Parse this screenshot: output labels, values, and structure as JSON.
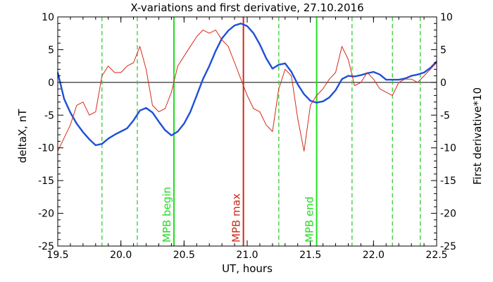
{
  "chart_data": {
    "type": "line",
    "title": "X-variations and first derivative, 27.10.2016",
    "xlabel": "UT, hours",
    "ylabel_left": "deltaX, nT",
    "ylabel_right": "First derivative*10",
    "xlim": [
      19.5,
      22.5
    ],
    "ylim": [
      -25,
      10
    ],
    "xticks": [
      "19.5",
      "20.0",
      "20.5",
      "21.0",
      "21.5",
      "22.0",
      "22.5"
    ],
    "yticks": [
      "10",
      "5",
      "0",
      "-5",
      "-10",
      "-15",
      "-20",
      "-25"
    ],
    "colors": {
      "deltaX": "#1f4fd6",
      "derivative": "#d42a1a",
      "mpb_edge": "#22dd22",
      "mpb_max": "#cc2a1a",
      "dashed": "#33cc33",
      "zero_line": "#000000"
    },
    "series": [
      {
        "x": [
          19.5,
          19.55,
          19.6,
          19.65,
          19.7,
          19.75,
          19.8,
          19.85,
          19.9,
          19.95,
          20.0,
          20.05,
          20.1,
          20.15,
          20.2,
          20.25,
          20.3,
          20.35,
          20.4,
          20.45,
          20.5,
          20.55,
          20.6,
          20.65,
          20.7,
          20.75,
          20.8,
          20.85,
          20.9,
          20.95,
          21.0,
          21.05,
          21.1,
          21.15,
          21.2,
          21.25,
          21.3,
          21.35,
          21.4,
          21.45,
          21.5,
          21.55,
          21.6,
          21.65,
          21.7,
          21.75,
          21.8,
          21.85,
          21.9,
          21.95,
          22.0,
          22.05,
          22.1,
          22.15,
          22.2,
          22.25,
          22.3,
          22.35,
          22.4,
          22.45,
          22.5
        ],
        "values": [
          1.5,
          -2.5,
          -4.6,
          -6.3,
          -7.6,
          -8.7,
          -9.6,
          -9.4,
          -8.6,
          -8.0,
          -7.5,
          -7.0,
          -5.8,
          -4.3,
          -3.9,
          -4.6,
          -6.0,
          -7.3,
          -8.1,
          -7.5,
          -6.3,
          -4.5,
          -2.0,
          0.5,
          2.5,
          4.8,
          6.7,
          7.9,
          8.7,
          9.0,
          8.6,
          7.5,
          5.8,
          3.7,
          2.1,
          2.7,
          2.9,
          1.6,
          -0.3,
          -1.8,
          -2.8,
          -3.1,
          -2.9,
          -2.3,
          -1.2,
          0.5,
          1.0,
          0.9,
          1.1,
          1.4,
          1.6,
          1.2,
          0.4,
          0.4,
          0.4,
          0.6,
          1.0,
          1.2,
          1.5,
          2.2,
          3.2
        ]
      },
      {
        "x": [
          19.5,
          19.55,
          19.6,
          19.65,
          19.7,
          19.75,
          19.8,
          19.85,
          19.9,
          19.95,
          20.0,
          20.05,
          20.1,
          20.15,
          20.2,
          20.25,
          20.3,
          20.35,
          20.4,
          20.45,
          20.5,
          20.55,
          20.6,
          20.65,
          20.7,
          20.75,
          20.8,
          20.85,
          20.9,
          20.95,
          21.0,
          21.05,
          21.1,
          21.15,
          21.2,
          21.25,
          21.3,
          21.35,
          21.4,
          21.45,
          21.5,
          21.55,
          21.6,
          21.65,
          21.7,
          21.75,
          21.8,
          21.85,
          21.9,
          21.95,
          22.0,
          22.05,
          22.1,
          22.15,
          22.2,
          22.25,
          22.3,
          22.35,
          22.4,
          22.45,
          22.5
        ],
        "values": [
          -10.5,
          -8.5,
          -6.5,
          -3.5,
          -3.0,
          -5.0,
          -4.5,
          1.0,
          2.5,
          1.5,
          1.5,
          2.5,
          3.0,
          5.5,
          2.0,
          -3.5,
          -4.5,
          -4.0,
          -1.5,
          2.5,
          4.0,
          5.5,
          7.0,
          8.0,
          7.5,
          8.0,
          6.5,
          5.5,
          3.0,
          0.5,
          -2.0,
          -4.0,
          -4.5,
          -6.5,
          -7.5,
          -1.0,
          2.0,
          1.0,
          -5.5,
          -10.5,
          -3.5,
          -2.0,
          -1.0,
          0.5,
          1.5,
          5.5,
          3.5,
          -0.5,
          0.0,
          1.5,
          0.5,
          -1.0,
          -1.5,
          -2.0,
          0.0,
          0.5,
          0.5,
          0.0,
          1.0,
          2.0,
          3.0
        ]
      }
    ],
    "vertical_lines": [
      {
        "x": 20.42,
        "style": "solid",
        "color_key": "mpb_edge",
        "label": "MPB begin"
      },
      {
        "x": 20.97,
        "style": "solid",
        "color_key": "mpb_max",
        "label": "MPB max"
      },
      {
        "x": 21.55,
        "style": "solid",
        "color_key": "mpb_edge",
        "label": "MPB end"
      },
      {
        "x": 19.85,
        "style": "dashed",
        "color_key": "dashed",
        "label": ""
      },
      {
        "x": 20.13,
        "style": "dashed",
        "color_key": "dashed",
        "label": ""
      },
      {
        "x": 21.25,
        "style": "dashed",
        "color_key": "dashed",
        "label": ""
      },
      {
        "x": 21.83,
        "style": "dashed",
        "color_key": "dashed",
        "label": ""
      },
      {
        "x": 22.15,
        "style": "dashed",
        "color_key": "dashed",
        "label": ""
      },
      {
        "x": 22.37,
        "style": "dashed",
        "color_key": "dashed",
        "label": ""
      }
    ]
  }
}
